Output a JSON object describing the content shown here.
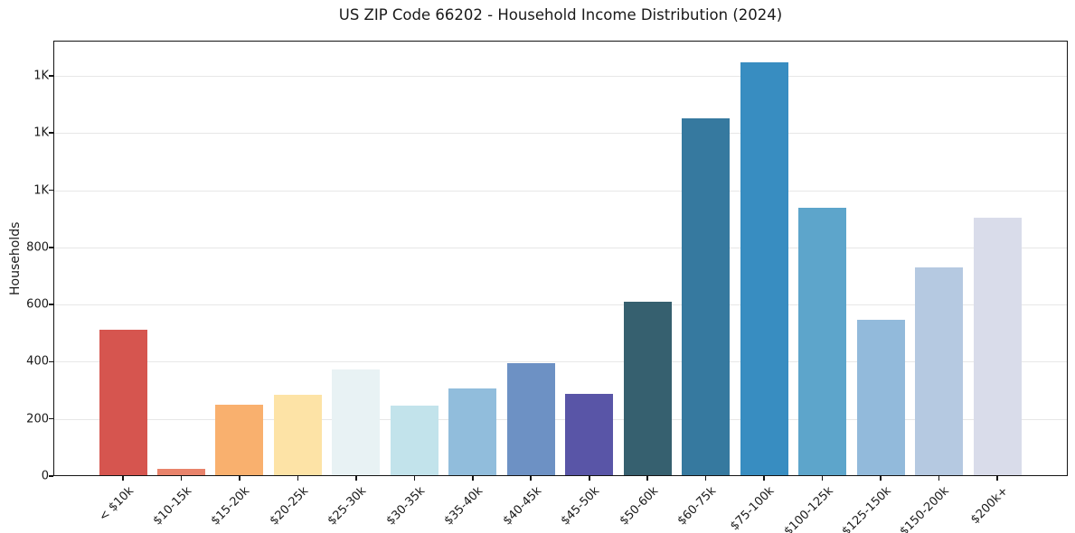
{
  "chart_data": {
    "type": "bar",
    "title": "US ZIP Code 66202 - Household Income Distribution (2024)",
    "xlabel": "",
    "ylabel": "Households",
    "categories": [
      "< $10k",
      "$10-15k",
      "$15-20k",
      "$20-25k",
      "$25-30k",
      "$30-35k",
      "$35-40k",
      "$40-45k",
      "$45-50k",
      "$50-60k",
      "$60-75k",
      "$75-100k",
      "$100-125k",
      "$125-150k",
      "$150-200k",
      "$200k+"
    ],
    "values": [
      512,
      25,
      250,
      285,
      372,
      246,
      306,
      396,
      287,
      609,
      1250,
      1448,
      940,
      547,
      730,
      904
    ],
    "bar_colors": [
      "#d6554f",
      "#e9836b",
      "#f9b06e",
      "#fde3a6",
      "#e8f2f4",
      "#c2e3eb",
      "#91bddc",
      "#6d91c4",
      "#5955a7",
      "#36606f",
      "#36799f",
      "#388dc1",
      "#5da5cb",
      "#92badb",
      "#b5c9e1",
      "#d9dcea"
    ],
    "ylim": [
      0,
      1523
    ],
    "yticks": [
      {
        "value": 0,
        "label": "0"
      },
      {
        "value": 200,
        "label": "200"
      },
      {
        "value": 400,
        "label": "400"
      },
      {
        "value": 600,
        "label": "600"
      },
      {
        "value": 800,
        "label": "800"
      },
      {
        "value": 1000,
        "label": "1K"
      },
      {
        "value": 1200,
        "label": "1K"
      },
      {
        "value": 1400,
        "label": "1K"
      }
    ],
    "grid": true,
    "legend": false,
    "frame_color": "#141414",
    "grid_color": "#e7e7e7",
    "text_color": "#1a1a1a",
    "background_color": "#ffffff"
  }
}
